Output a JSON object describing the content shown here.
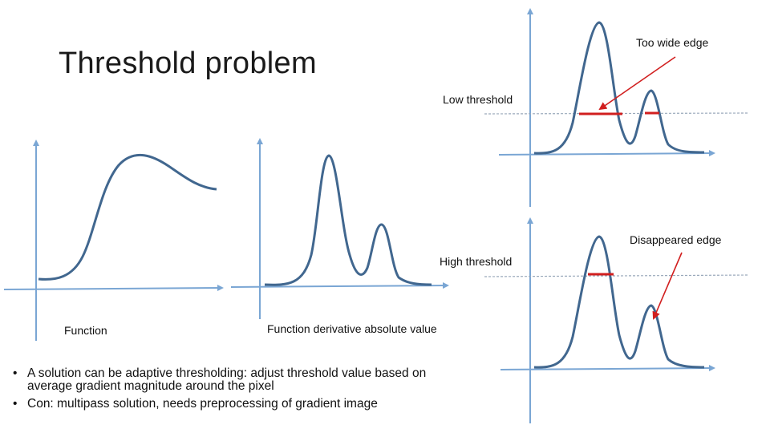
{
  "title": "Threshold problem",
  "labels": {
    "too_wide": "Too wide edge",
    "low_threshold": "Low threshold",
    "disappeared": "Disappeared edge",
    "high_threshold": "High threshold",
    "function": "Function",
    "derivative": "Function derivative absolute value"
  },
  "bullets": [
    {
      "marker": "•",
      "text": "A solution can be adaptive thresholding: adjust threshold value based on average gradient magnitude around the pixel"
    },
    {
      "marker": "•",
      "text": "Con: multipass solution, needs preprocessing of gradient image"
    }
  ],
  "colors": {
    "axis": "#7aa6d4",
    "curve": "#41678f",
    "threshold_line": "#9aa9bb",
    "edge_marker": "#d11f1f",
    "arrow": "#d11f1f"
  }
}
